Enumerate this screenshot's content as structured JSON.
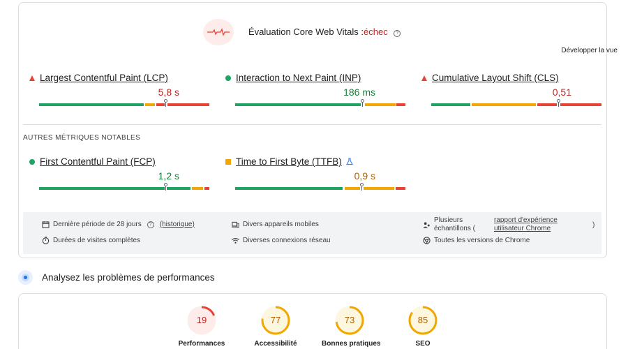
{
  "cwv": {
    "title": "Évaluation Core Web Vitals :",
    "status": "échec",
    "help_icon": "?",
    "expand_label": "Développer la vue"
  },
  "metrics": [
    {
      "name": "Largest Contentful Paint (LCP)",
      "value": "5,8 s",
      "status": "poor",
      "indicator": "triangle"
    },
    {
      "name": "Interaction to Next Paint (INP)",
      "value": "186 ms",
      "status": "good",
      "indicator": "circle"
    },
    {
      "name": "Cumulative Layout Shift (CLS)",
      "value": "0,51",
      "status": "poor",
      "indicator": "triangle"
    }
  ],
  "other_title": "AUTRES MÉTRIQUES NOTABLES",
  "other_metrics": [
    {
      "name": "First Contentful Paint (FCP)",
      "value": "1,2 s",
      "status": "good",
      "indicator": "circle"
    },
    {
      "name": "Time to First Byte (TTFB)",
      "value": "0,9 s",
      "status": "needs-improvement",
      "indicator": "square",
      "extra_icon": "flask-icon"
    }
  ],
  "info": {
    "period_prefix": "Dernière période de 28 jours",
    "history_link": "(historique)",
    "devices": "Divers appareils mobiles",
    "samples_prefix": "Plusieurs échantillons (",
    "samples_link": "rapport d'expérience utilisateur Chrome",
    "samples_suffix": ")",
    "durations": "Durées de visites complètes",
    "connections": "Diverses connexions réseau",
    "versions": "Toutes les versions de Chrome"
  },
  "analyze_title": "Analysez les problèmes de performances",
  "scores": [
    {
      "label": "Performances",
      "score": "19",
      "color": "#e94235",
      "bg": "#fdecea",
      "text_color": "#c5221f"
    },
    {
      "label": "Accessibilité",
      "score": "77",
      "color": "#f2a600",
      "bg": "#fef7e0",
      "text_color": "#b06000"
    },
    {
      "label": "Bonnes pratiques",
      "score": "73",
      "color": "#f2a600",
      "bg": "#fef7e0",
      "text_color": "#b06000"
    },
    {
      "label": "SEO",
      "score": "85",
      "color": "#f2a600",
      "bg": "#fef7e0",
      "text_color": "#b06000"
    }
  ],
  "colors": {
    "good": "#1ea362",
    "needs_improvement": "#f2a600",
    "poor": "#e94235"
  }
}
